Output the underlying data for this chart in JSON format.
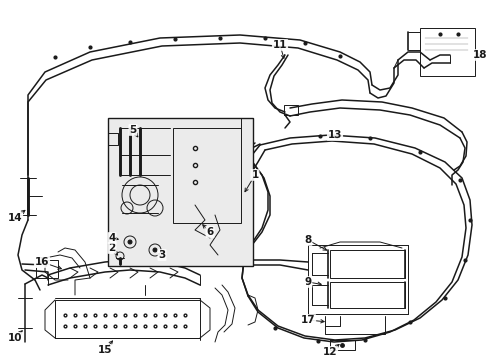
{
  "bg_color": "#ffffff",
  "line_color": "#1a1a1a",
  "lw_thin": 0.7,
  "lw_med": 1.1,
  "lw_thick": 1.5,
  "label_fontsize": 7.5,
  "figsize": [
    4.89,
    3.6
  ],
  "dpi": 100
}
